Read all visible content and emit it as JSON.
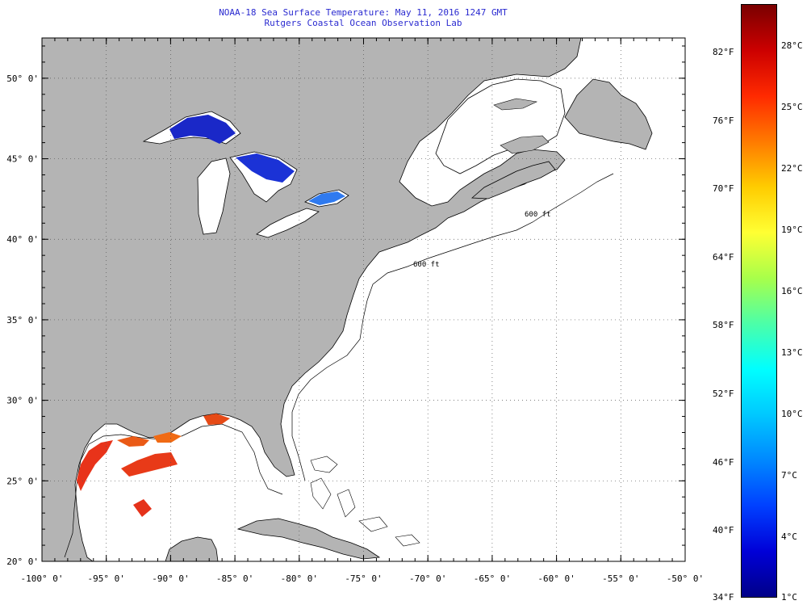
{
  "title": {
    "line1": "NOAA-18 Sea Surface Temperature:  May 11, 2016 1247 GMT",
    "line2": "Rutgers Coastal Ocean Observation Lab"
  },
  "map": {
    "lon_range": [
      -100,
      -50
    ],
    "lat_range": [
      20,
      52.5
    ],
    "lon_ticks": [
      "-100° 0'",
      "-95° 0'",
      "-90° 0'",
      "-85° 0'",
      "-80° 0'",
      "-75° 0'",
      "-70° 0'",
      "-65° 0'",
      "-60° 0'",
      "-55° 0'",
      "-50° 0'"
    ],
    "lat_ticks": [
      "20° 0'",
      "25° 0'",
      "30° 0'",
      "35° 0'",
      "40° 0'",
      "45° 0'",
      "50° 0'"
    ],
    "land_color": "#b4b4b4",
    "ocean_color": "#ffffff",
    "isobath_label": "600 ft"
  },
  "colorbar": {
    "fahrenheit": [
      "82°F",
      "76°F",
      "70°F",
      "64°F",
      "58°F",
      "52°F",
      "46°F",
      "40°F",
      "34°F"
    ],
    "celsius": [
      "28°C",
      "25°C",
      "22°C",
      "19°C",
      "16°C",
      "13°C",
      "10°C",
      "7°C",
      "4°C",
      "1°C"
    ],
    "colors": [
      "#7a0000",
      "#cc0000",
      "#ff2a00",
      "#ff7a00",
      "#ffcc00",
      "#ffff33",
      "#a8ff4a",
      "#4cffa8",
      "#00ffff",
      "#00c8ff",
      "#0088ff",
      "#0040ff",
      "#0000d8",
      "#000088"
    ]
  }
}
